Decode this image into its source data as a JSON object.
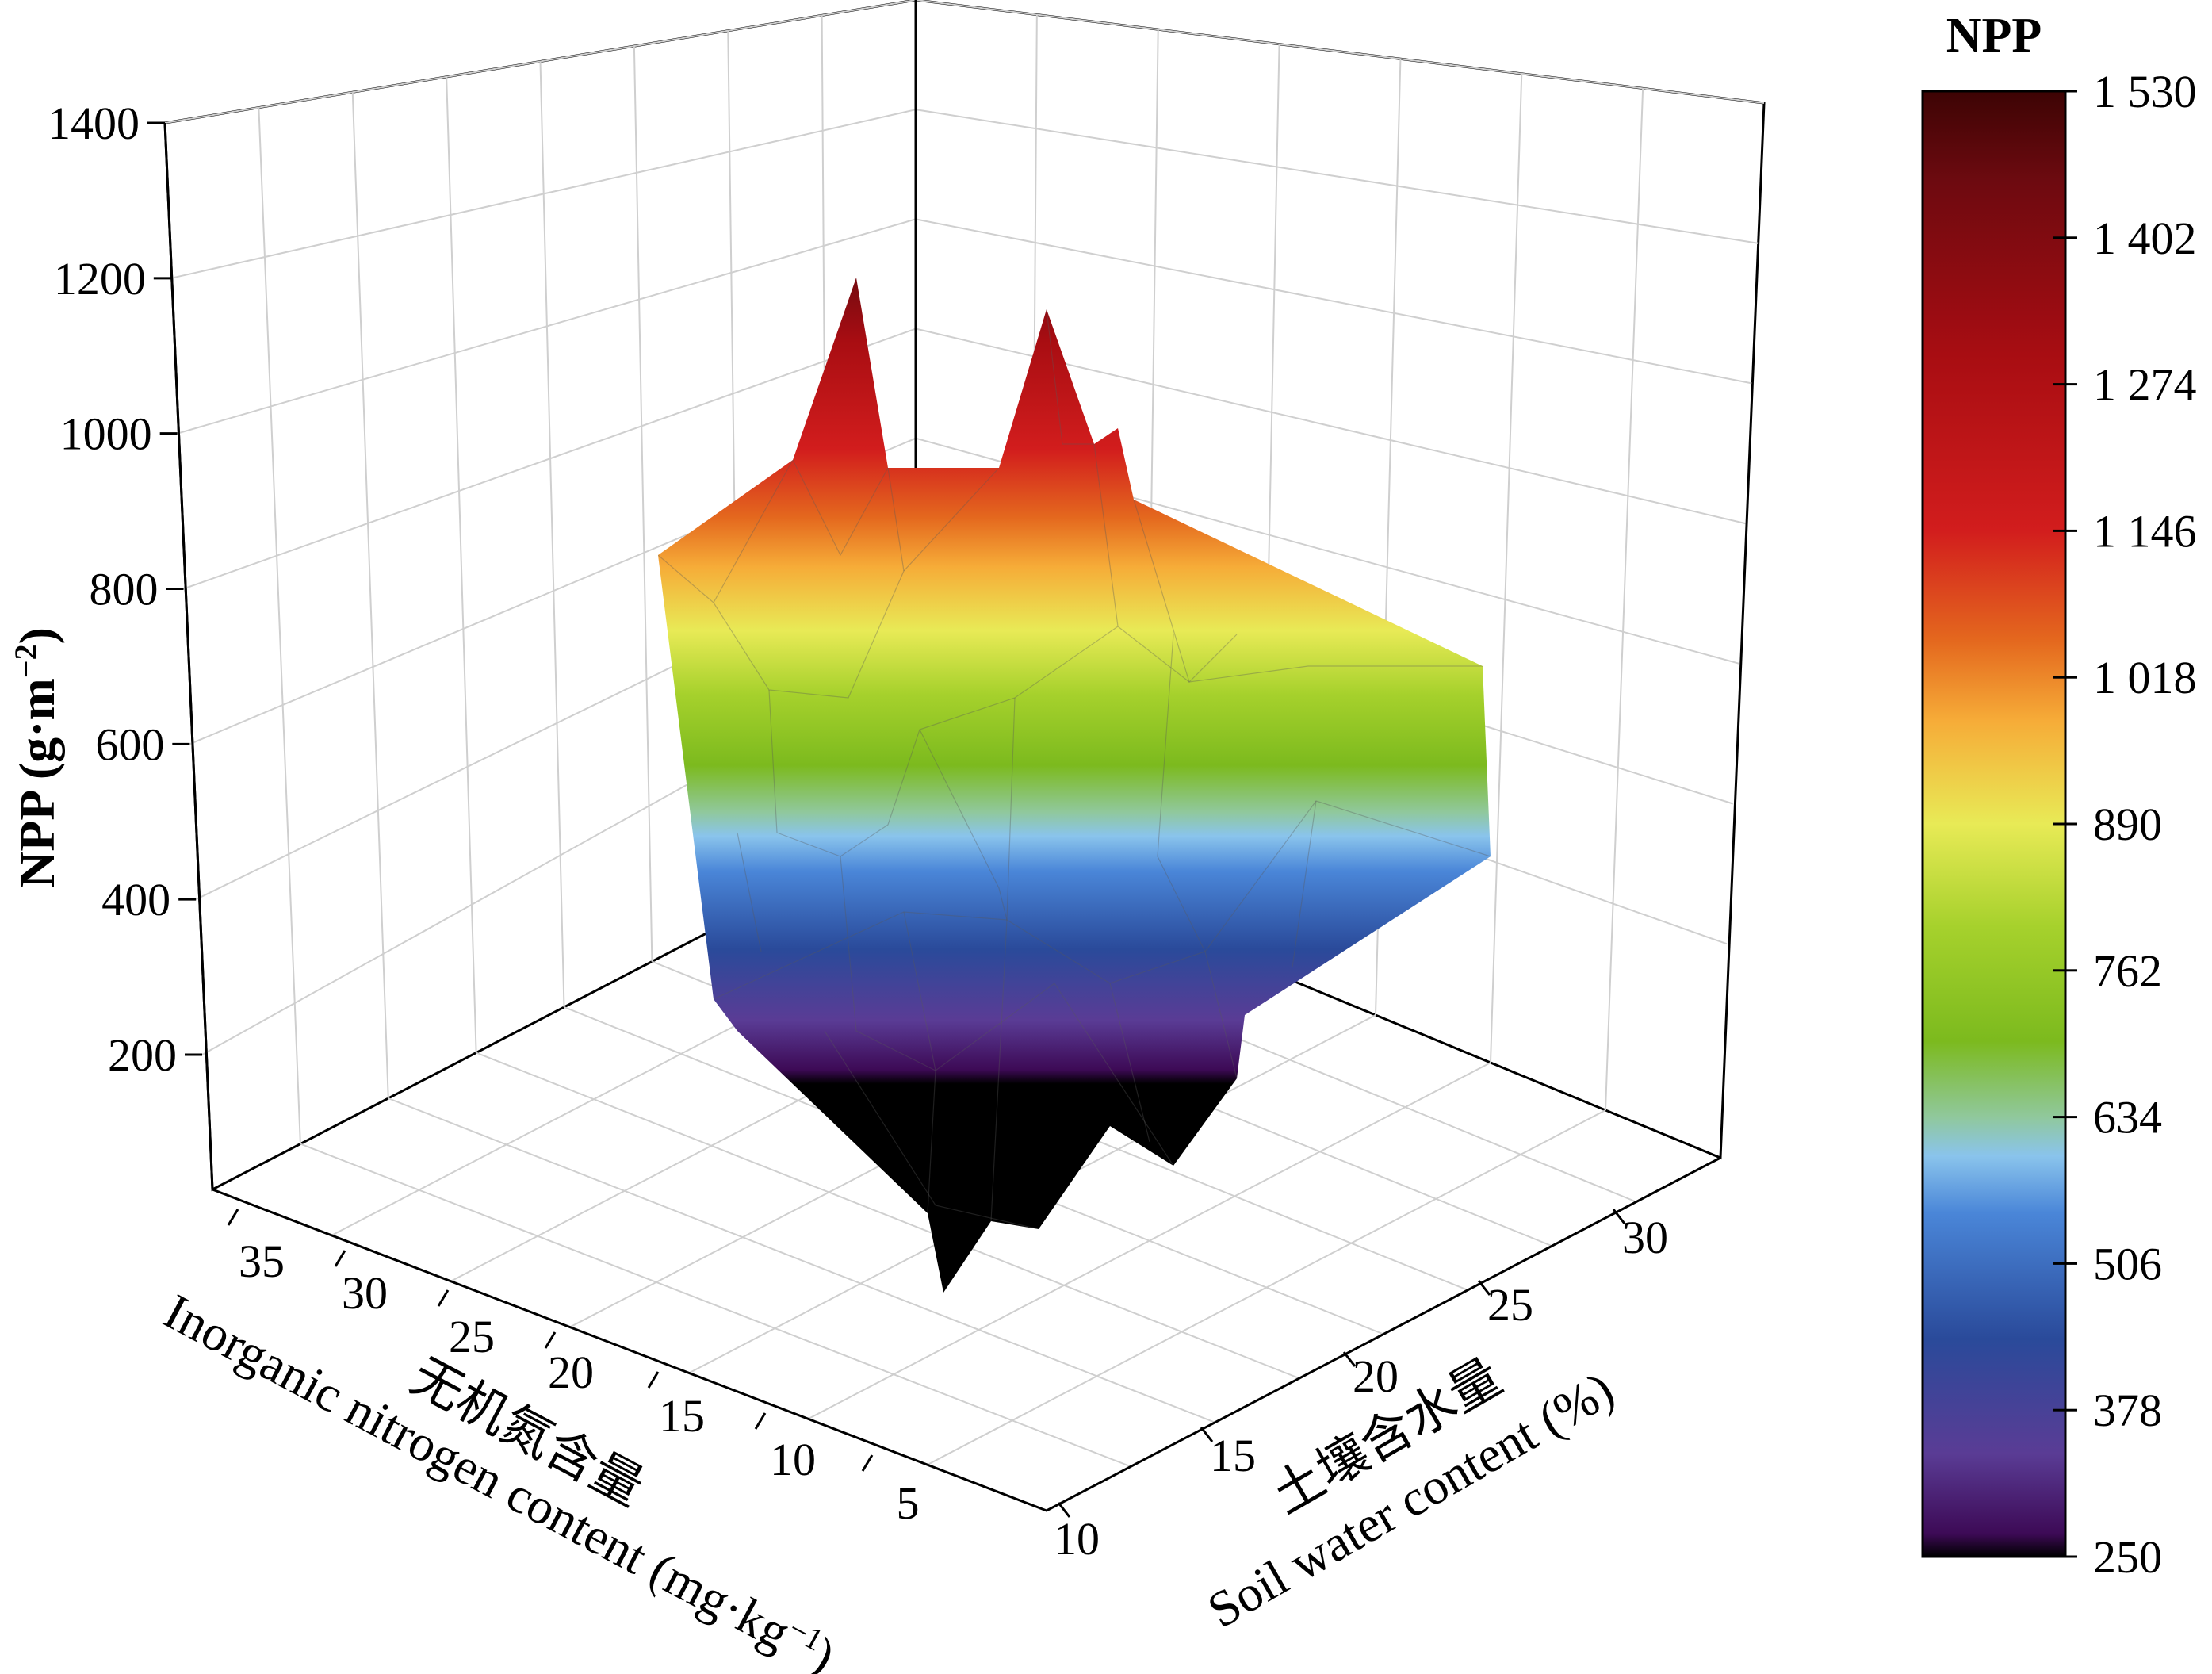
{
  "chart_data": {
    "type": "surface3d",
    "z_axis": {
      "label_main": "NPP (g·m",
      "label_sup": "−2",
      "label_close": ")",
      "ticks": [
        "200",
        "400",
        "600",
        "800",
        "1000",
        "1200",
        "1400"
      ],
      "tick_values": [
        200,
        400,
        600,
        800,
        1000,
        1200,
        1400
      ],
      "range": [
        0,
        1400
      ]
    },
    "x_axis": {
      "label_cn": "无机氮含量",
      "label_main": "Inorganic nitrogen content (mg·kg",
      "label_sup": "−1",
      "label_close": ")",
      "ticks": [
        "35",
        "30",
        "25",
        "20",
        "15",
        "10",
        "5"
      ],
      "tick_values": [
        35,
        30,
        25,
        20,
        15,
        10,
        5
      ]
    },
    "y_axis": {
      "label_cn": "土壤含水量",
      "label_en": "Soil water content  (%)",
      "ticks": [
        "10",
        "15",
        "20",
        "25",
        "30"
      ],
      "tick_values": [
        10,
        15,
        20,
        25,
        30
      ]
    },
    "colorbar": {
      "title": "NPP",
      "ticks": [
        "1 530",
        "1 402",
        "1 274",
        "1 146",
        "1 018",
        "890",
        "762",
        "634",
        "506",
        "378",
        "250"
      ],
      "tick_values": [
        1530,
        1402,
        1274,
        1146,
        1018,
        890,
        762,
        634,
        506,
        378,
        250
      ],
      "range": [
        250,
        1530
      ],
      "colors": [
        "#000000",
        "#3d0a56",
        "#5a3c95",
        "#2a4a9a",
        "#4a86d8",
        "#8ac4ec",
        "#90c89c",
        "#7cba1e",
        "#a6d12c",
        "#e8ea56",
        "#f6ac38",
        "#e4681e",
        "#d21d1d",
        "#a80d12",
        "#6e0a10",
        "#3d0404"
      ],
      "color_values": [
        250,
        270,
        340,
        440,
        550,
        600,
        634,
        700,
        800,
        890,
        980,
        1050,
        1146,
        1300,
        1450,
        1530
      ]
    },
    "surface_range_approx": [
      270,
      1220
    ],
    "peaks_approx": [
      1220,
      1160,
      1100,
      1000
    ]
  }
}
